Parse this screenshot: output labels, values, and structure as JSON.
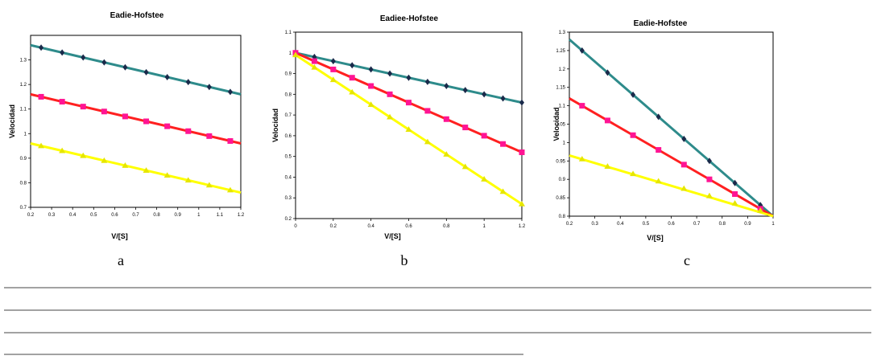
{
  "chart_data": [
    {
      "type": "line",
      "title": "Eadie-Hofstee",
      "xlabel": "V/[S]",
      "ylabel": "Velocidad",
      "panel_label": "a",
      "xlim": [
        0.2,
        1.2
      ],
      "ylim": [
        0.7,
        1.4
      ],
      "xticks": [
        0.2,
        0.3,
        0.4,
        0.5,
        0.6,
        0.7,
        0.8,
        0.9,
        1,
        1.1,
        1.2
      ],
      "yticks": [
        0.7,
        0.8,
        0.9,
        1,
        1.1,
        1.2,
        1.3
      ],
      "grid": false,
      "series": [
        {
          "color": "#2e8b8b",
          "marker": "diamond",
          "markerColor": "#1a2a4a",
          "x": [
            0.25,
            0.35,
            0.45,
            0.55,
            0.65,
            0.75,
            0.85,
            0.95,
            1.05,
            1.15
          ],
          "y": [
            1.35,
            1.33,
            1.31,
            1.29,
            1.27,
            1.25,
            1.23,
            1.21,
            1.19,
            1.17
          ],
          "line": [
            [
              0.2,
              1.36
            ],
            [
              1.2,
              1.16
            ]
          ]
        },
        {
          "color": "#ff2020",
          "marker": "square",
          "markerColor": "#ff1493",
          "x": [
            0.25,
            0.35,
            0.45,
            0.55,
            0.65,
            0.75,
            0.85,
            0.95,
            1.05,
            1.15
          ],
          "y": [
            1.15,
            1.13,
            1.11,
            1.09,
            1.07,
            1.05,
            1.03,
            1.01,
            0.99,
            0.97
          ],
          "line": [
            [
              0.2,
              1.16
            ],
            [
              1.2,
              0.96
            ]
          ]
        },
        {
          "color": "#ffff00",
          "marker": "triangle",
          "markerColor": "#e6e600",
          "x": [
            0.25,
            0.35,
            0.45,
            0.55,
            0.65,
            0.75,
            0.85,
            0.95,
            1.05,
            1.15
          ],
          "y": [
            0.95,
            0.93,
            0.91,
            0.89,
            0.87,
            0.85,
            0.83,
            0.81,
            0.79,
            0.77
          ],
          "line": [
            [
              0.2,
              0.96
            ],
            [
              1.2,
              0.76
            ]
          ]
        }
      ]
    },
    {
      "type": "line",
      "title": "Eadiee-Hofstee",
      "xlabel": "V/[S]",
      "ylabel": "Velocidad",
      "panel_label": "b",
      "xlim": [
        0,
        1.2
      ],
      "ylim": [
        0.2,
        1.1
      ],
      "xticks": [
        0,
        0.2,
        0.4,
        0.6,
        0.8,
        1,
        1.2
      ],
      "yticks": [
        0.2,
        0.3,
        0.4,
        0.5,
        0.6,
        0.7,
        0.8,
        0.9,
        1,
        1.1
      ],
      "grid": false,
      "series": [
        {
          "color": "#2e8b8b",
          "marker": "diamond",
          "markerColor": "#1a2a4a",
          "x": [
            0,
            0.1,
            0.2,
            0.3,
            0.4,
            0.5,
            0.6,
            0.7,
            0.8,
            0.9,
            1.0,
            1.1,
            1.2
          ],
          "y": [
            1.0,
            0.98,
            0.96,
            0.94,
            0.92,
            0.9,
            0.88,
            0.86,
            0.84,
            0.82,
            0.8,
            0.78,
            0.76
          ],
          "line": [
            [
              0,
              1.0
            ],
            [
              1.2,
              0.76
            ]
          ]
        },
        {
          "color": "#ff2020",
          "marker": "square",
          "markerColor": "#ff1493",
          "x": [
            0,
            0.1,
            0.2,
            0.3,
            0.4,
            0.5,
            0.6,
            0.7,
            0.8,
            0.9,
            1.0,
            1.1,
            1.2
          ],
          "y": [
            1.0,
            0.96,
            0.92,
            0.88,
            0.84,
            0.8,
            0.76,
            0.72,
            0.68,
            0.64,
            0.6,
            0.56,
            0.52
          ],
          "line": [
            [
              0,
              1.0
            ],
            [
              1.2,
              0.52
            ]
          ]
        },
        {
          "color": "#ffff00",
          "marker": "triangle",
          "markerColor": "#e6e600",
          "x": [
            0,
            0.1,
            0.2,
            0.3,
            0.4,
            0.5,
            0.6,
            0.7,
            0.8,
            0.9,
            1.0,
            1.1,
            1.2
          ],
          "y": [
            0.99,
            0.93,
            0.87,
            0.81,
            0.75,
            0.69,
            0.63,
            0.57,
            0.51,
            0.45,
            0.39,
            0.33,
            0.27
          ],
          "line": [
            [
              0,
              0.99
            ],
            [
              1.2,
              0.27
            ]
          ]
        }
      ]
    },
    {
      "type": "line",
      "title": "Eadie-Hofstee",
      "xlabel": "V/[S]",
      "ylabel": "Velocidad",
      "panel_label": "c",
      "xlim": [
        0.2,
        1.0
      ],
      "ylim": [
        0.8,
        1.3
      ],
      "xticks": [
        0.2,
        0.3,
        0.4,
        0.5,
        0.6,
        0.7,
        0.8,
        0.9,
        1
      ],
      "yticks": [
        0.8,
        0.85,
        0.9,
        0.95,
        1,
        1.05,
        1.1,
        1.15,
        1.2,
        1.25,
        1.3
      ],
      "grid": false,
      "series": [
        {
          "color": "#2e8b8b",
          "marker": "diamond",
          "markerColor": "#1a2a4a",
          "x": [
            0.25,
            0.35,
            0.45,
            0.55,
            0.65,
            0.75,
            0.85,
            0.95
          ],
          "y": [
            1.25,
            1.19,
            1.13,
            1.07,
            1.01,
            0.95,
            0.89,
            0.83
          ],
          "line": [
            [
              0.2,
              1.28
            ],
            [
              1.0,
              0.8
            ]
          ]
        },
        {
          "color": "#ff2020",
          "marker": "square",
          "markerColor": "#ff1493",
          "x": [
            0.25,
            0.35,
            0.45,
            0.55,
            0.65,
            0.75,
            0.85,
            0.95
          ],
          "y": [
            1.1,
            1.06,
            1.02,
            0.98,
            0.94,
            0.9,
            0.86,
            0.82
          ],
          "line": [
            [
              0.2,
              1.12
            ],
            [
              1.0,
              0.8
            ]
          ]
        },
        {
          "color": "#ffff00",
          "marker": "triangle",
          "markerColor": "#e6e600",
          "x": [
            0.25,
            0.35,
            0.45,
            0.55,
            0.65,
            0.75,
            0.85,
            0.95
          ],
          "y": [
            0.955,
            0.935,
            0.915,
            0.895,
            0.875,
            0.855,
            0.835,
            0.815
          ],
          "line": [
            [
              0.2,
              0.965
            ],
            [
              1.0,
              0.8
            ]
          ]
        }
      ]
    }
  ]
}
